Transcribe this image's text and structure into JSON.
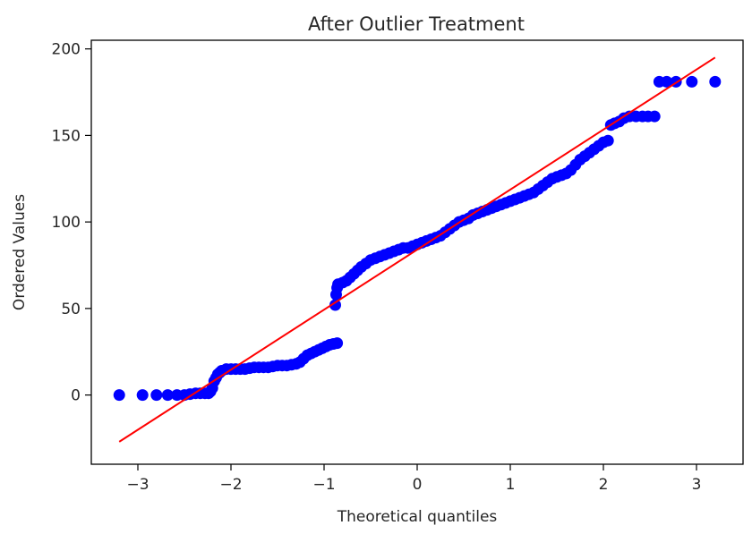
{
  "chart_data": {
    "type": "scatter",
    "title": "After Outlier Treatment",
    "xlabel": "Theoretical quantiles",
    "ylabel": "Ordered Values",
    "xlim": [
      -3.5,
      3.5
    ],
    "ylim": [
      -40,
      205
    ],
    "xticks": [
      -3,
      -2,
      -1,
      0,
      1,
      2,
      3
    ],
    "xtick_labels": [
      "−3",
      "−2",
      "−1",
      "0",
      "1",
      "2",
      "3"
    ],
    "yticks": [
      0,
      50,
      100,
      150,
      200
    ],
    "ytick_labels": [
      "0",
      "50",
      "100",
      "150",
      "200"
    ],
    "grid": false,
    "colors": {
      "points": "#0000ff",
      "fit_line": "#ff0000"
    },
    "fit_line": {
      "x": [
        -3.2,
        3.2
      ],
      "y": [
        -27,
        195
      ]
    },
    "series": [
      {
        "marker": "circle",
        "points": [
          [
            -3.2,
            0
          ],
          [
            -2.95,
            0
          ],
          [
            -2.8,
            0
          ],
          [
            -2.68,
            0
          ],
          [
            -2.58,
            0
          ],
          [
            -2.5,
            0
          ],
          [
            -2.44,
            0.5
          ],
          [
            -2.38,
            1
          ],
          [
            -2.33,
            1
          ],
          [
            -2.28,
            1
          ],
          [
            -2.24,
            1
          ],
          [
            -2.22,
            2
          ],
          [
            -2.2,
            4
          ],
          [
            -2.18,
            8
          ],
          [
            -2.16,
            10
          ],
          [
            -2.14,
            12
          ],
          [
            -2.12,
            13
          ],
          [
            -2.1,
            14
          ],
          [
            -2.05,
            15
          ],
          [
            -2.0,
            15
          ],
          [
            -1.95,
            15
          ],
          [
            -1.9,
            15
          ],
          [
            -1.85,
            15
          ],
          [
            -1.8,
            15.5
          ],
          [
            -1.75,
            16
          ],
          [
            -1.7,
            16
          ],
          [
            -1.65,
            16
          ],
          [
            -1.6,
            16
          ],
          [
            -1.55,
            16.5
          ],
          [
            -1.5,
            17
          ],
          [
            -1.45,
            17
          ],
          [
            -1.4,
            17
          ],
          [
            -1.35,
            17.5
          ],
          [
            -1.3,
            18
          ],
          [
            -1.26,
            19
          ],
          [
            -1.22,
            21
          ],
          [
            -1.18,
            23
          ],
          [
            -1.14,
            24
          ],
          [
            -1.1,
            25
          ],
          [
            -1.06,
            26
          ],
          [
            -1.02,
            27
          ],
          [
            -0.98,
            28
          ],
          [
            -0.94,
            29
          ],
          [
            -0.9,
            29.5
          ],
          [
            -0.86,
            30
          ],
          [
            -0.88,
            52
          ],
          [
            -0.87,
            58
          ],
          [
            -0.86,
            62
          ],
          [
            -0.85,
            64
          ],
          [
            -0.8,
            65
          ],
          [
            -0.76,
            66
          ],
          [
            -0.72,
            68
          ],
          [
            -0.68,
            70
          ],
          [
            -0.64,
            72
          ],
          [
            -0.6,
            74
          ],
          [
            -0.55,
            76
          ],
          [
            -0.5,
            78
          ],
          [
            -0.45,
            79
          ],
          [
            -0.4,
            80
          ],
          [
            -0.35,
            81
          ],
          [
            -0.3,
            82
          ],
          [
            -0.25,
            83
          ],
          [
            -0.2,
            84
          ],
          [
            -0.15,
            85
          ],
          [
            -0.1,
            85
          ],
          [
            -0.05,
            86
          ],
          [
            0.0,
            87
          ],
          [
            0.05,
            88
          ],
          [
            0.1,
            89
          ],
          [
            0.15,
            90
          ],
          [
            0.2,
            91
          ],
          [
            0.25,
            92
          ],
          [
            0.3,
            94
          ],
          [
            0.35,
            96
          ],
          [
            0.4,
            98
          ],
          [
            0.45,
            100
          ],
          [
            0.5,
            101
          ],
          [
            0.55,
            102
          ],
          [
            0.6,
            104
          ],
          [
            0.65,
            105
          ],
          [
            0.7,
            106
          ],
          [
            0.75,
            107
          ],
          [
            0.8,
            108
          ],
          [
            0.85,
            109
          ],
          [
            0.9,
            110
          ],
          [
            0.95,
            111
          ],
          [
            1.0,
            112
          ],
          [
            1.05,
            113
          ],
          [
            1.1,
            114
          ],
          [
            1.15,
            115
          ],
          [
            1.2,
            116
          ],
          [
            1.25,
            117
          ],
          [
            1.3,
            119
          ],
          [
            1.35,
            121
          ],
          [
            1.4,
            123
          ],
          [
            1.45,
            125
          ],
          [
            1.5,
            126
          ],
          [
            1.55,
            127
          ],
          [
            1.6,
            128
          ],
          [
            1.65,
            130
          ],
          [
            1.7,
            133
          ],
          [
            1.75,
            136
          ],
          [
            1.8,
            138
          ],
          [
            1.85,
            140
          ],
          [
            1.9,
            142
          ],
          [
            1.95,
            144
          ],
          [
            2.0,
            146
          ],
          [
            2.05,
            147
          ],
          [
            2.08,
            156
          ],
          [
            2.12,
            157
          ],
          [
            2.17,
            158
          ],
          [
            2.22,
            160
          ],
          [
            2.28,
            161
          ],
          [
            2.35,
            161
          ],
          [
            2.42,
            161
          ],
          [
            2.48,
            161
          ],
          [
            2.55,
            161
          ],
          [
            2.6,
            181
          ],
          [
            2.68,
            181
          ],
          [
            2.78,
            181
          ],
          [
            2.95,
            181
          ],
          [
            3.2,
            181
          ]
        ]
      }
    ]
  }
}
